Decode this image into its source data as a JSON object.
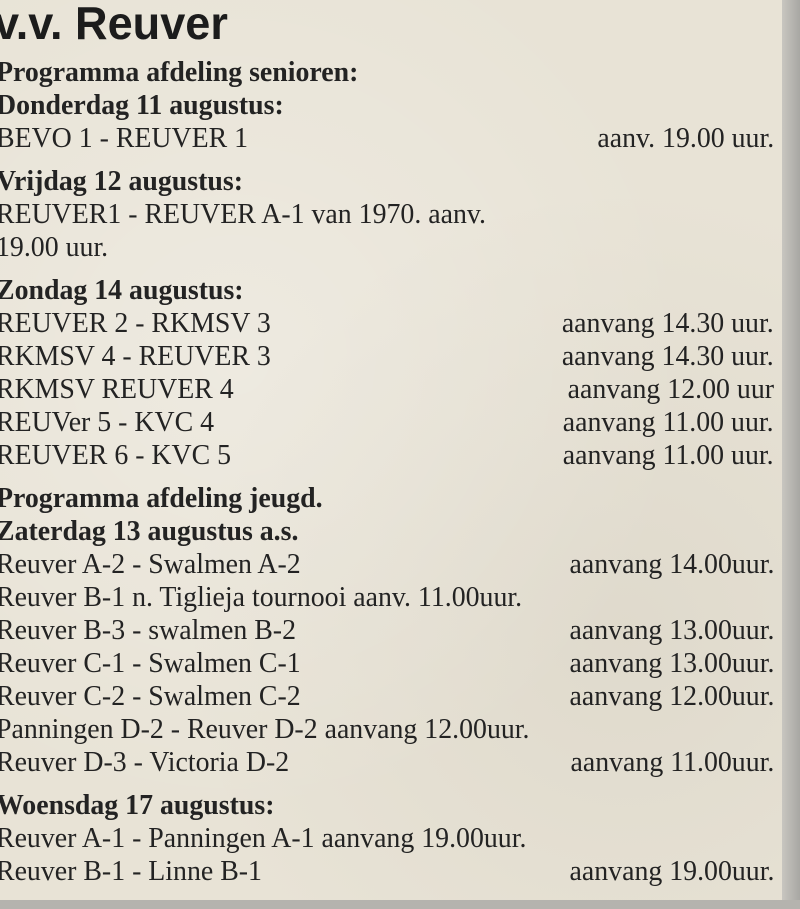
{
  "title": "v.v. Reuver",
  "lines": [
    {
      "left": "Programma afdeling senioren:",
      "right": "",
      "heading": true
    },
    {
      "left": "Donderdag 11 augustus:",
      "right": "",
      "heading": true
    },
    {
      "left": "BEVO 1 - REUVER 1",
      "right": "aanv. 19.00 uur."
    },
    {
      "left": "Vrijdag 12 augustus:",
      "right": "",
      "heading": true,
      "gap": true
    },
    {
      "left": "REUVER1 - REUVER A-1 van 1970. aanv.",
      "right": ""
    },
    {
      "left": "19.00 uur.",
      "right": ""
    },
    {
      "left": "Zondag 14 augustus:",
      "right": "",
      "heading": true,
      "gap": true
    },
    {
      "left": "REUVER 2 - RKMSV 3",
      "right": "aanvang 14.30 uur."
    },
    {
      "left": "RKMSV 4 - REUVER 3",
      "right": "aanvang 14.30 uur."
    },
    {
      "left": "RKMSV   REUVER 4",
      "right": "aanvang 12.00 uur"
    },
    {
      "left": "REUVer 5 - KVC 4",
      "right": "aanvang 11.00 uur."
    },
    {
      "left": "REUVER 6 - KVC 5",
      "right": "aanvang 11.00 uur."
    },
    {
      "left": "Programma afdeling jeugd.",
      "right": "",
      "heading": true,
      "gap": true
    },
    {
      "left": "Zaterdag 13 augustus a.s.",
      "right": "",
      "heading": true
    },
    {
      "left": "Reuver A-2 - Swalmen A-2",
      "right": "aanvang 14.00uur."
    },
    {
      "left": "Reuver B-1 n. Tiglieja tournooi aanv. 11.00uur.",
      "right": ""
    },
    {
      "left": "Reuver B-3 - swalmen B-2",
      "right": "aanvang 13.00uur."
    },
    {
      "left": "Reuver C-1 - Swalmen C-1",
      "right": "aanvang 13.00uur."
    },
    {
      "left": "Reuver C-2 - Swalmen C-2",
      "right": "aanvang 12.00uur."
    },
    {
      "left": "Panningen D-2 - Reuver D-2 aanvang 12.00uur.",
      "right": ""
    },
    {
      "left": " Reuver D-3 - Victoria D-2",
      "right": "aanvang 11.00uur."
    },
    {
      "left": "Woensdag 17 augustus:",
      "right": "",
      "heading": true,
      "gap": true
    },
    {
      "left": "Reuver A-1 - Panningen A-1 aanvang 19.00uur.",
      "right": ""
    },
    {
      "left": "Reuver B-1 - Linne B-1",
      "right": "aanvang 19.00uur."
    }
  ]
}
